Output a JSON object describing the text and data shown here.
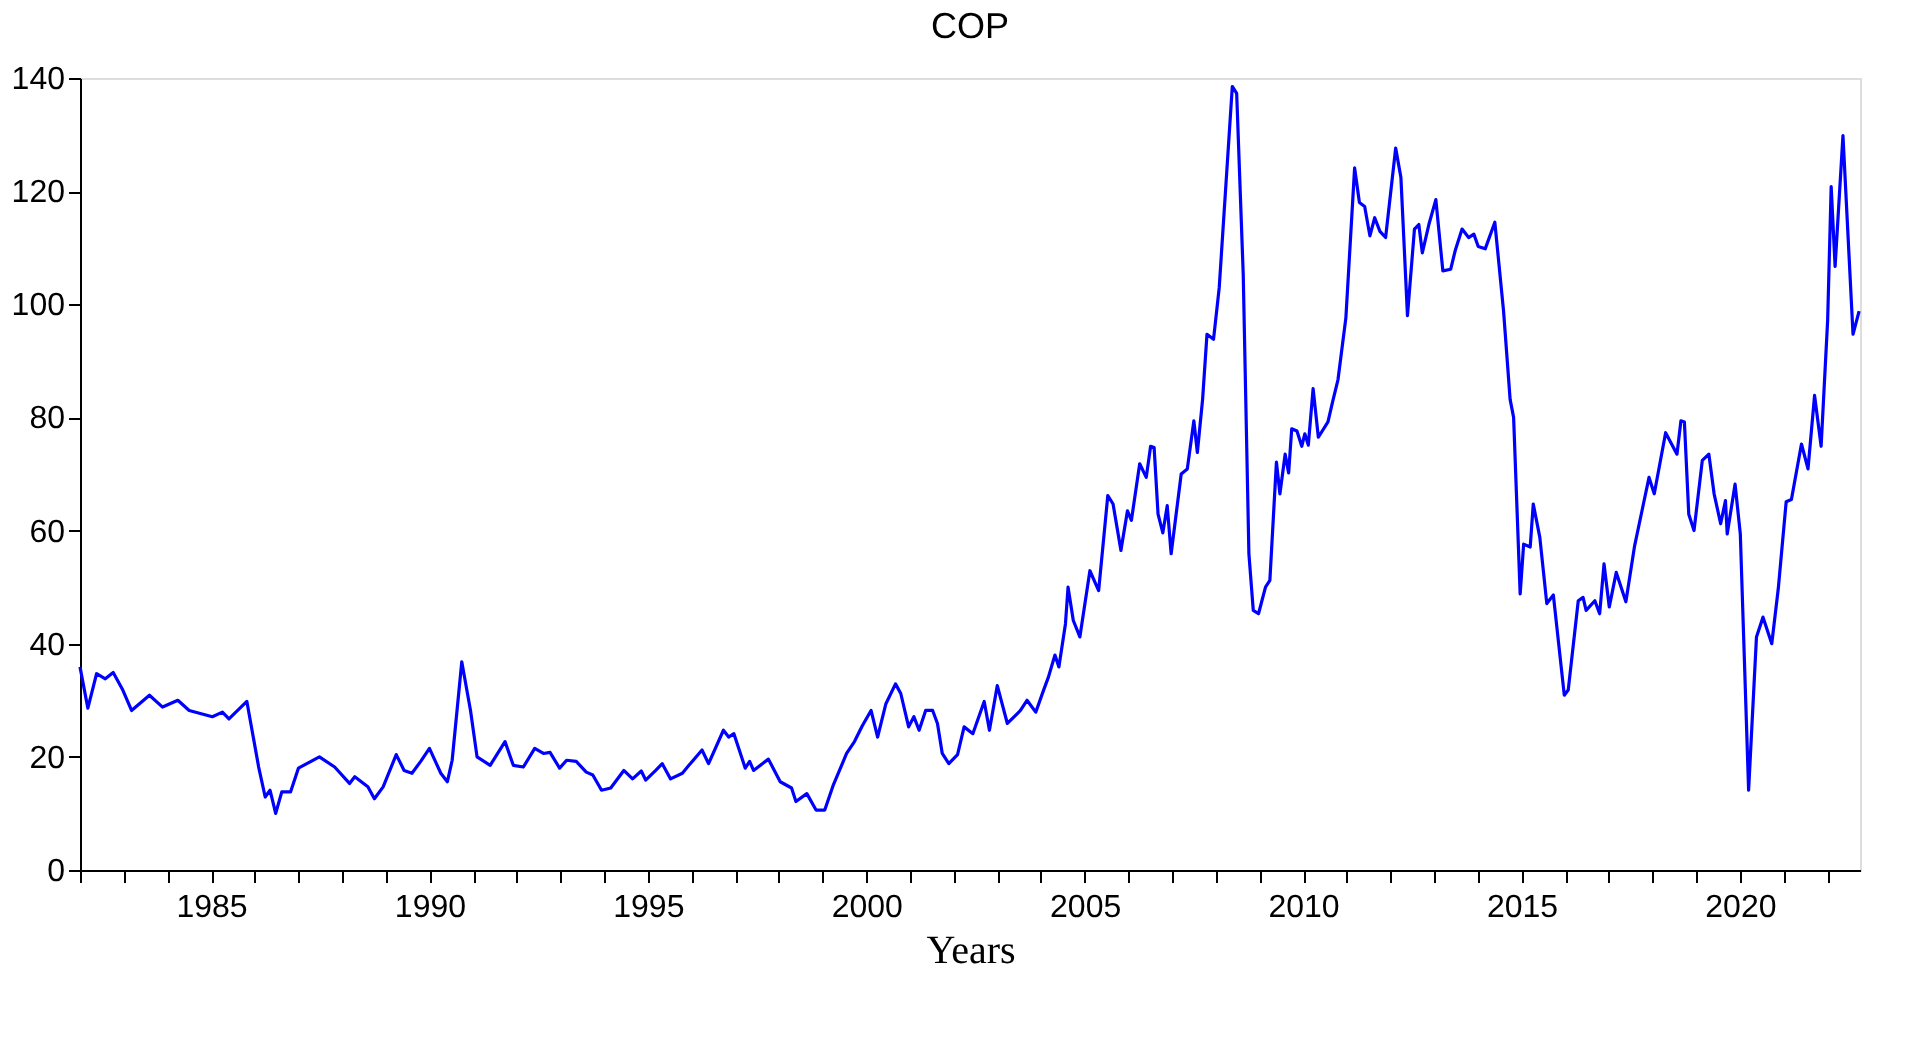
{
  "chart_data": {
    "type": "line",
    "title": "COP",
    "xlabel": "Years",
    "x": [
      1982.0,
      1982.18,
      1982.38,
      1982.58,
      1982.76,
      1982.98,
      1983.18,
      1983.59,
      1983.89,
      1984.24,
      1984.5,
      1985.03,
      1985.26,
      1985.41,
      1985.82,
      1986.09,
      1986.24,
      1986.35,
      1986.48,
      1986.62,
      1986.82,
      1987.0,
      1987.48,
      1987.83,
      1988.17,
      1988.29,
      1988.59,
      1988.74,
      1988.94,
      1989.24,
      1989.42,
      1989.6,
      1989.8,
      1990.0,
      1990.26,
      1990.41,
      1990.52,
      1990.74,
      1990.94,
      1991.09,
      1991.39,
      1991.73,
      1991.92,
      1992.15,
      1992.41,
      1992.61,
      1992.76,
      1992.98,
      1993.14,
      1993.36,
      1993.59,
      1993.74,
      1993.94,
      1994.15,
      1994.45,
      1994.65,
      1994.85,
      1994.95,
      1995.18,
      1995.33,
      1995.52,
      1995.79,
      1995.94,
      1996.24,
      1996.39,
      1996.73,
      1996.85,
      1996.97,
      1997.23,
      1997.33,
      1997.42,
      1997.76,
      1998.03,
      1998.29,
      1998.39,
      1998.64,
      1998.85,
      1999.05,
      1999.24,
      1999.55,
      1999.73,
      1999.91,
      2000.11,
      2000.26,
      2000.45,
      2000.67,
      2000.79,
      2000.97,
      2001.09,
      2001.21,
      2001.36,
      2001.52,
      2001.63,
      2001.74,
      2001.89,
      2002.09,
      2002.24,
      2002.44,
      2002.7,
      2002.82,
      2003.0,
      2003.23,
      2003.53,
      2003.68,
      2003.88,
      2004.06,
      2004.17,
      2004.32,
      2004.41,
      2004.56,
      2004.62,
      2004.74,
      2004.89,
      2005.12,
      2005.32,
      2005.53,
      2005.65,
      2005.83,
      2005.98,
      2006.07,
      2006.26,
      2006.41,
      2006.51,
      2006.59,
      2006.68,
      2006.79,
      2006.89,
      2006.98,
      2007.21,
      2007.35,
      2007.5,
      2007.58,
      2007.7,
      2007.8,
      2007.95,
      2008.08,
      2008.38,
      2008.48,
      2008.63,
      2008.76,
      2008.86,
      2008.98,
      2009.14,
      2009.24,
      2009.39,
      2009.47,
      2009.59,
      2009.67,
      2009.74,
      2009.86,
      2009.97,
      2010.04,
      2010.12,
      2010.23,
      2010.35,
      2010.57,
      2010.68,
      2010.8,
      2010.98,
      2011.18,
      2011.29,
      2011.41,
      2011.53,
      2011.64,
      2011.76,
      2011.89,
      2012.12,
      2012.24,
      2012.39,
      2012.55,
      2012.65,
      2012.73,
      2012.88,
      2013.04,
      2013.2,
      2013.38,
      2013.48,
      2013.64,
      2013.79,
      2013.91,
      2014.01,
      2014.17,
      2014.39,
      2014.59,
      2014.74,
      2014.82,
      2014.97,
      2015.05,
      2015.2,
      2015.27,
      2015.42,
      2015.58,
      2015.73,
      2015.98,
      2016.07,
      2016.3,
      2016.41,
      2016.48,
      2016.68,
      2016.79,
      2016.89,
      2017.01,
      2017.17,
      2017.39,
      2017.59,
      2017.77,
      2017.92,
      2018.04,
      2018.3,
      2018.56,
      2018.65,
      2018.73,
      2018.83,
      2018.95,
      2019.14,
      2019.29,
      2019.41,
      2019.56,
      2019.67,
      2019.71,
      2019.89,
      2020.01,
      2020.2,
      2020.38,
      2020.53,
      2020.73,
      2020.88,
      2021.06,
      2021.18,
      2021.41,
      2021.56,
      2021.71,
      2021.86,
      2022.01,
      2022.09,
      2022.18,
      2022.36,
      2022.59,
      2022.73
    ],
    "series": [
      {
        "color": "#0000ff",
        "values": [
          35.9,
          28.6,
          34.7,
          33.8,
          34.9,
          31.8,
          28.2,
          30.9,
          28.8,
          30.0,
          28.2,
          27.1,
          27.9,
          26.7,
          29.8,
          18.2,
          12.9,
          14.1,
          10.0,
          13.8,
          13.8,
          18.0,
          20.0,
          18.2,
          15.3,
          16.5,
          14.7,
          12.6,
          14.7,
          20.4,
          17.6,
          17.1,
          19.2,
          21.5,
          17.1,
          15.6,
          19.4,
          36.8,
          28.2,
          20.0,
          18.5,
          22.7,
          18.5,
          18.2,
          21.5,
          20.6,
          20.8,
          18.0,
          19.4,
          19.2,
          17.3,
          16.8,
          14.1,
          14.5,
          17.6,
          16.1,
          17.5,
          15.9,
          17.6,
          18.8,
          16.1,
          17.1,
          18.5,
          21.2,
          18.8,
          24.7,
          23.5,
          24.1,
          18.0,
          19.2,
          17.6,
          19.6,
          15.6,
          14.5,
          12.1,
          13.5,
          10.6,
          10.6,
          14.9,
          20.6,
          22.7,
          25.5,
          28.2,
          23.5,
          29.4,
          32.9,
          31.2,
          25.3,
          27.1,
          24.7,
          28.2,
          28.2,
          25.9,
          20.6,
          18.8,
          20.4,
          25.3,
          24.1,
          29.8,
          24.7,
          32.6,
          25.9,
          28.2,
          30.0,
          27.9,
          31.8,
          34.1,
          38.0,
          35.9,
          43.5,
          50.0,
          44.1,
          41.2,
          52.9,
          49.4,
          66.2,
          64.7,
          56.5,
          63.5,
          61.8,
          71.8,
          69.4,
          74.9,
          74.7,
          62.9,
          59.6,
          64.4,
          55.9,
          70.0,
          70.9,
          79.4,
          73.8,
          83.2,
          94.7,
          93.8,
          102.9,
          138.5,
          137.3,
          105.3,
          55.9,
          45.9,
          45.3,
          50.0,
          51.2,
          72.1,
          66.5,
          73.5,
          70.2,
          78.0,
          77.6,
          74.9,
          77.1,
          75.1,
          85.1,
          76.5,
          79.2,
          82.9,
          86.7,
          97.6,
          124.1,
          118.0,
          117.3,
          112.1,
          115.3,
          112.9,
          111.8,
          127.6,
          122.4,
          98.0,
          113.3,
          114.1,
          109.1,
          114.1,
          118.5,
          105.9,
          106.2,
          109.4,
          113.3,
          111.8,
          112.4,
          110.2,
          109.8,
          114.5,
          98.8,
          83.2,
          80.0,
          48.8,
          57.6,
          57.1,
          64.7,
          58.8,
          47.1,
          48.6,
          30.9,
          31.8,
          47.6,
          48.2,
          45.9,
          47.6,
          45.3,
          54.1,
          46.5,
          52.6,
          47.4,
          57.3,
          63.9,
          69.4,
          66.5,
          77.3,
          73.5,
          79.4,
          79.2,
          62.9,
          60.0,
          72.4,
          73.5,
          66.5,
          61.2,
          65.3,
          59.4,
          68.2,
          59.4,
          14.1,
          41.2,
          44.7,
          40.0,
          49.8,
          65.1,
          65.5,
          75.3,
          70.9,
          83.9,
          74.9,
          97.3,
          120.8,
          106.7,
          129.8,
          94.7,
          98.8
        ]
      }
    ],
    "xlim": [
      1982,
      2022.75
    ],
    "xticks": [
      {
        "value": 1982,
        "label": null
      },
      {
        "value": 1983,
        "label": null
      },
      {
        "value": 1984,
        "label": null
      },
      1985,
      {
        "value": 1986,
        "label": null
      },
      {
        "value": 1987,
        "label": null
      },
      {
        "value": 1988,
        "label": null
      },
      {
        "value": 1989,
        "label": null
      },
      1990,
      {
        "value": 1991,
        "label": null
      },
      {
        "value": 1992,
        "label": null
      },
      {
        "value": 1993,
        "label": null
      },
      {
        "value": 1994,
        "label": null
      },
      1995,
      {
        "value": 1996,
        "label": null
      },
      {
        "value": 1997,
        "label": null
      },
      {
        "value": 1998,
        "label": null
      },
      {
        "value": 1999,
        "label": null
      },
      2000,
      {
        "value": 2001,
        "label": null
      },
      {
        "value": 2002,
        "label": null
      },
      {
        "value": 2003,
        "label": null
      },
      {
        "value": 2004,
        "label": null
      },
      2005,
      {
        "value": 2006,
        "label": null
      },
      {
        "value": 2007,
        "label": null
      },
      {
        "value": 2008,
        "label": null
      },
      {
        "value": 2009,
        "label": null
      },
      2010,
      {
        "value": 2011,
        "label": null
      },
      {
        "value": 2012,
        "label": null
      },
      {
        "value": 2013,
        "label": null
      },
      {
        "value": 2014,
        "label": null
      },
      2015,
      {
        "value": 2016,
        "label": null
      },
      {
        "value": 2017,
        "label": null
      },
      {
        "value": 2018,
        "label": null
      },
      {
        "value": 2019,
        "label": null
      },
      2020,
      {
        "value": 2021,
        "label": null
      },
      {
        "value": 2022,
        "label": null
      }
    ],
    "ylim": [
      0,
      140
    ],
    "yticks": [
      0,
      20,
      40,
      60,
      80,
      100,
      120,
      140
    ],
    "grid": false,
    "line_style": "solid",
    "marker": "none"
  }
}
